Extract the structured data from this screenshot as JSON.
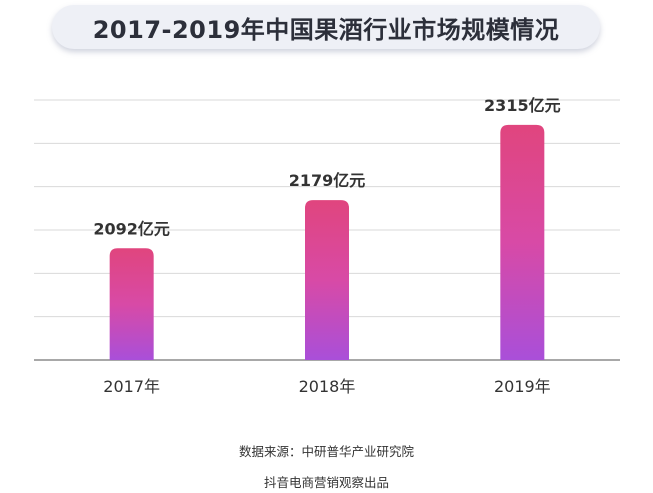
{
  "chart_data": {
    "type": "bar",
    "title": "2017-2019年中国果酒行业市场规模情况",
    "categories": [
      "2017年",
      "2018年",
      "2019年"
    ],
    "values": [
      2092,
      2179,
      2315
    ],
    "value_labels": [
      "2092亿元",
      "2179亿元",
      "2315亿元"
    ],
    "unit": "亿元",
    "xlabel": "",
    "ylabel": "",
    "ylim": [
      1890,
      2360
    ],
    "grid": true,
    "legend": "none"
  },
  "footer": {
    "source": "数据来源：中研普华产业研究院",
    "credit": "抖音电商营销观察出品"
  },
  "colors": {
    "bar_top": "#e0457e",
    "bar_mid": "#d84aa6",
    "bar_bottom": "#a94fd9",
    "grid": "#d9d9d9",
    "axis": "#8c8c8c",
    "text": "#333333",
    "title_bg": "#eef0f6"
  }
}
